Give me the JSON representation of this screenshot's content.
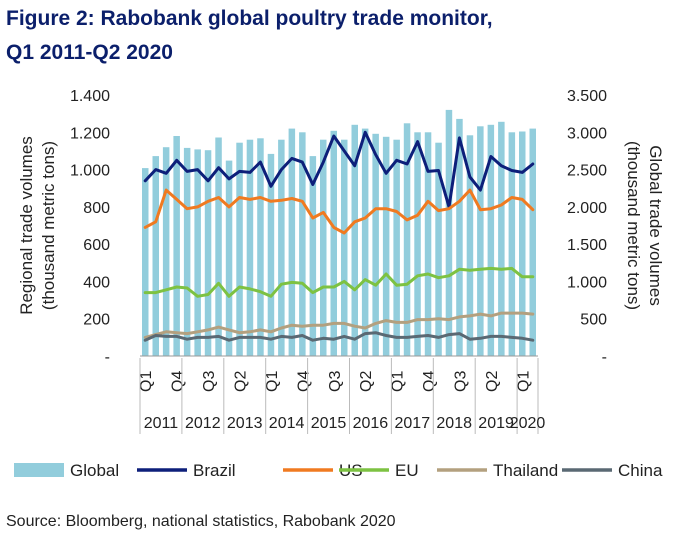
{
  "figure": {
    "title_line1": "Figure 2: Rabobank global poultry trade monitor,",
    "title_line2": "Q1 2011-Q2 2020",
    "source": "Source: Bloomberg, national statistics, Rabobank 2020"
  },
  "chart_data": {
    "type": "bar",
    "left_axis": {
      "label_line1": "Regional trade volumes",
      "label_line2": "(thousand metric tons)",
      "range": [
        0,
        1400
      ],
      "ticks": [
        "-",
        "200",
        "400",
        "600",
        "800",
        "1.000",
        "1.200",
        "1.400"
      ],
      "tick_values": [
        0,
        200,
        400,
        600,
        800,
        1000,
        1200,
        1400
      ]
    },
    "right_axis": {
      "label_line1": "Global trade volumes",
      "label_line2": "(thousand metric tons)",
      "range": [
        0,
        3500
      ],
      "ticks": [
        "-",
        "500",
        "1.000",
        "1.500",
        "2.000",
        "2.500",
        "3.000",
        "3.500"
      ],
      "tick_values": [
        0,
        500,
        1000,
        1500,
        2000,
        2500,
        3000,
        3500
      ]
    },
    "quarter_labels": [
      {
        "index": 0,
        "text": "Q1"
      },
      {
        "index": 3,
        "text": "Q4"
      },
      {
        "index": 6,
        "text": "Q3"
      },
      {
        "index": 9,
        "text": "Q2"
      },
      {
        "index": 12,
        "text": "Q1"
      },
      {
        "index": 15,
        "text": "Q4"
      },
      {
        "index": 18,
        "text": "Q3"
      },
      {
        "index": 21,
        "text": "Q2"
      },
      {
        "index": 24,
        "text": "Q1"
      },
      {
        "index": 27,
        "text": "Q4"
      },
      {
        "index": 30,
        "text": "Q3"
      },
      {
        "index": 33,
        "text": "Q2"
      },
      {
        "index": 36,
        "text": "Q1"
      }
    ],
    "year_labels": [
      "2011",
      "2012",
      "2013",
      "2014",
      "2015",
      "2016",
      "2017",
      "2018",
      "2019",
      "2020"
    ],
    "categories": [
      "2011 Q1",
      "2011 Q2",
      "2011 Q3",
      "2011 Q4",
      "2012 Q1",
      "2012 Q2",
      "2012 Q3",
      "2012 Q4",
      "2013 Q1",
      "2013 Q2",
      "2013 Q3",
      "2013 Q4",
      "2014 Q1",
      "2014 Q2",
      "2014 Q3",
      "2014 Q4",
      "2015 Q1",
      "2015 Q2",
      "2015 Q3",
      "2015 Q4",
      "2016 Q1",
      "2016 Q2",
      "2016 Q3",
      "2016 Q4",
      "2017 Q1",
      "2017 Q2",
      "2017 Q3",
      "2017 Q4",
      "2018 Q1",
      "2018 Q2",
      "2018 Q3",
      "2018 Q4",
      "2019 Q1",
      "2019 Q2",
      "2019 Q3",
      "2019 Q4",
      "2020 Q1",
      "2020 Q2"
    ],
    "bar_series": {
      "name": "Global",
      "axis": "right",
      "color": "#92cddc",
      "values": [
        2520,
        2680,
        2800,
        2950,
        2790,
        2770,
        2760,
        2930,
        2620,
        2860,
        2900,
        2920,
        2710,
        2900,
        3050,
        3000,
        2680,
        2900,
        3020,
        2900,
        3100,
        3050,
        2980,
        2940,
        2900,
        3120,
        3000,
        3000,
        2860,
        3300,
        3180,
        2960,
        3080,
        3100,
        3140,
        3000,
        3010,
        3050
      ]
    },
    "line_series": [
      {
        "name": "Brazil",
        "axis": "left",
        "color": "#0d1f7a",
        "values": [
          940,
          1000,
          980,
          1050,
          990,
          1000,
          940,
          1010,
          950,
          990,
          985,
          1040,
          910,
          1000,
          1060,
          1040,
          920,
          1040,
          1180,
          1100,
          1020,
          1200,
          1080,
          980,
          1050,
          1030,
          1150,
          990,
          995,
          800,
          1170,
          960,
          890,
          1070,
          1020,
          995,
          985,
          1030
        ]
      },
      {
        "name": "US",
        "axis": "left",
        "color": "#f07a20",
        "values": [
          690,
          720,
          890,
          840,
          790,
          800,
          830,
          850,
          800,
          850,
          840,
          850,
          830,
          835,
          845,
          830,
          740,
          770,
          690,
          660,
          720,
          740,
          790,
          790,
          775,
          730,
          755,
          830,
          780,
          790,
          830,
          890,
          785,
          790,
          810,
          850,
          840,
          785
        ]
      },
      {
        "name": "EU",
        "axis": "left",
        "color": "#7dc242",
        "values": [
          340,
          340,
          355,
          370,
          365,
          320,
          330,
          390,
          320,
          370,
          360,
          345,
          320,
          385,
          395,
          390,
          340,
          370,
          370,
          400,
          355,
          410,
          380,
          440,
          380,
          385,
          430,
          440,
          420,
          430,
          465,
          460,
          465,
          470,
          465,
          470,
          425,
          425
        ]
      },
      {
        "name": "Thailand",
        "axis": "left",
        "color": "#b3a07f",
        "values": [
          100,
          115,
          130,
          125,
          120,
          130,
          140,
          155,
          140,
          125,
          130,
          140,
          130,
          150,
          165,
          160,
          165,
          165,
          175,
          175,
          160,
          150,
          175,
          190,
          180,
          180,
          195,
          195,
          200,
          195,
          210,
          215,
          225,
          215,
          230,
          230,
          230,
          225
        ]
      },
      {
        "name": "China",
        "axis": "left",
        "color": "#5a6973",
        "values": [
          85,
          110,
          105,
          105,
          90,
          100,
          100,
          105,
          85,
          100,
          100,
          100,
          90,
          105,
          100,
          110,
          85,
          95,
          90,
          105,
          90,
          120,
          125,
          110,
          100,
          100,
          105,
          110,
          100,
          115,
          120,
          90,
          95,
          105,
          105,
          100,
          95,
          85
        ]
      }
    ],
    "legend": {
      "placement": "bottom",
      "items": [
        {
          "name": "Global",
          "kind": "bar",
          "color": "#92cddc"
        },
        {
          "name": "Brazil",
          "kind": "line",
          "color": "#0d1f7a"
        },
        {
          "name": "US",
          "kind": "line",
          "color": "#f07a20"
        },
        {
          "name": "EU",
          "kind": "line",
          "color": "#7dc242"
        },
        {
          "name": "Thailand",
          "kind": "line",
          "color": "#b3a07f"
        },
        {
          "name": "China",
          "kind": "line",
          "color": "#5a6973"
        }
      ]
    }
  }
}
